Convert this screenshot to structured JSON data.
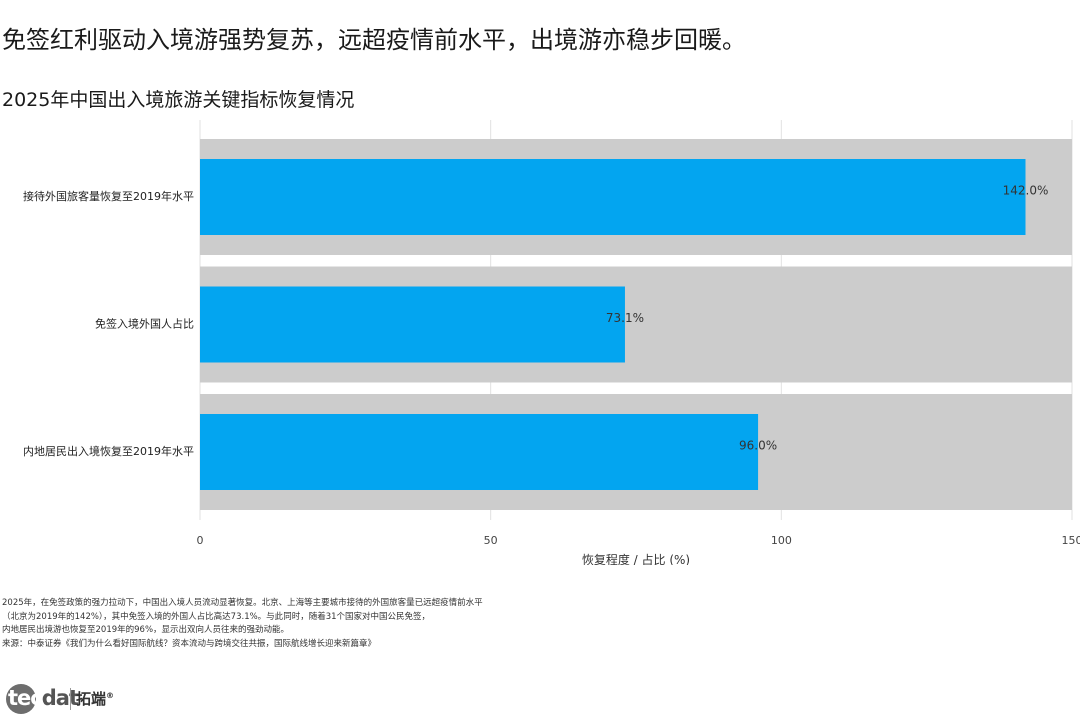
{
  "headline": "免签红利驱动入境游强势复苏，远超疫情前水平，出境游亦稳步回暖。",
  "chart_data": {
    "type": "bar",
    "orientation": "horizontal",
    "title": "2025年中国出入境旅游关键指标恢复情况",
    "xlabel": "恢复程度 / 占比 (%)",
    "ylabel": "",
    "xlim": [
      0,
      150
    ],
    "xticks": [
      0,
      50,
      100,
      150
    ],
    "grid": true,
    "categories": [
      "接待外国旅客量恢复至2019年水平",
      "免签入境外国人占比",
      "内地居民出入境恢复至2019年水平"
    ],
    "values": [
      142.0,
      73.1,
      96.0
    ],
    "background_values": [
      150,
      150,
      150
    ],
    "data_labels": [
      "142.0%",
      "73.1%",
      "96.0%"
    ],
    "colors": {
      "bar": "#03a5f0",
      "background_bar": "#cccccc",
      "grid": "#e2e2e2"
    }
  },
  "notes": [
    "2025年，在免签政策的强力拉动下，中国出入境人员流动显著恢复。北京、上海等主要城市接待的外国旅客量已远超疫情前水平",
    "（北京为2019年的142%），其中免签入境的外国人占比高达73.1%。与此同时，随着31个国家对中国公民免签，",
    "内地居民出境游也恢复至2019年的96%，显示出双向人员往来的强劲动能。",
    "来源：中泰证券《我们为什么看好国际航线？资本流动与跨境交往共振，国际航线增长迎来新篇章》"
  ],
  "logo": {
    "brand": "tecdat",
    "brand_in": "tec",
    "brand_rest": "dat",
    "cn": "拓端",
    "reg": "®"
  }
}
